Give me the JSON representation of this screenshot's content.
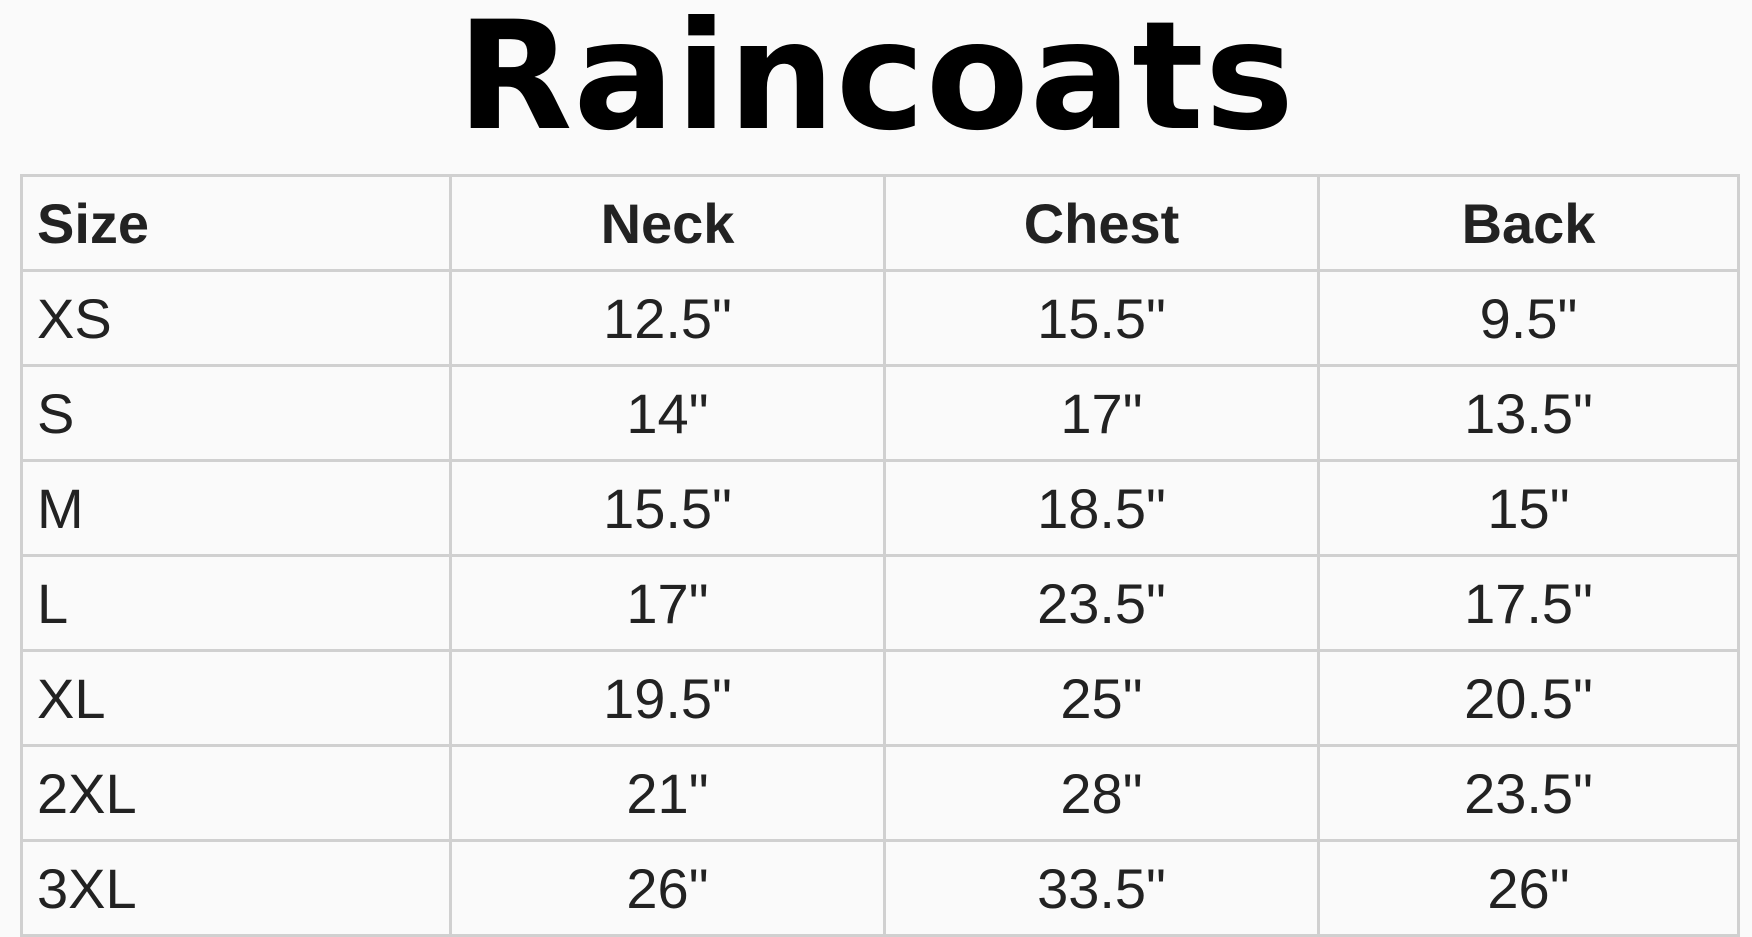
{
  "title": "Raincoats",
  "headers": [
    "Size",
    "Neck",
    "Chest",
    "Back"
  ],
  "rows": [
    [
      "XS",
      "12.5\"",
      "15.5\"",
      "9.5\""
    ],
    [
      "S",
      "14\"",
      "17\"",
      "13.5\""
    ],
    [
      "M",
      "15.5\"",
      "18.5\"",
      "15\""
    ],
    [
      "L",
      "17\"",
      "23.5\"",
      "17.5\""
    ],
    [
      "XL",
      "19.5\"",
      "25\"",
      "20.5\""
    ],
    [
      "2XL",
      "21\"",
      "28\"",
      "23.5\""
    ],
    [
      "3XL",
      "26\"",
      "33.5\"",
      "26\""
    ]
  ]
}
